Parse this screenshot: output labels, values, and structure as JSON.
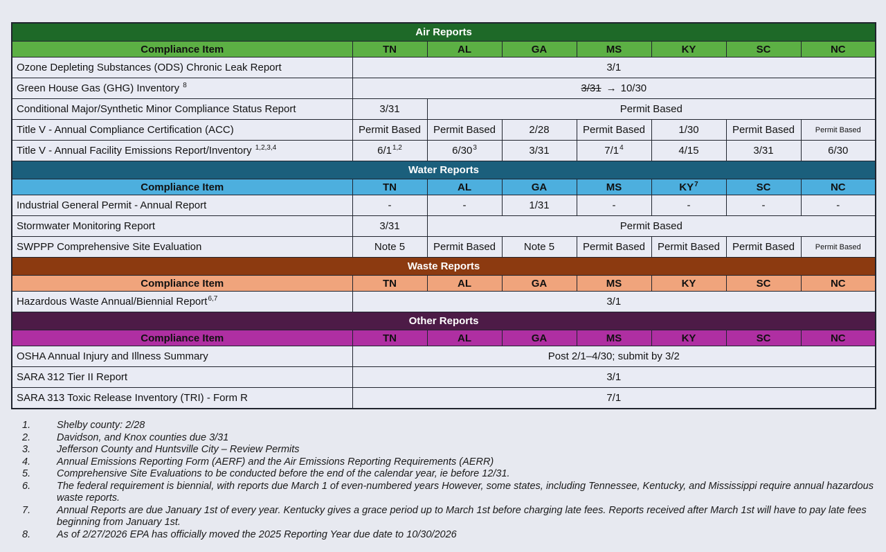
{
  "page": {
    "background": "#e7e9f0"
  },
  "table": {
    "compliance_item_label": "Compliance Item",
    "border_color": "#20242e",
    "cell_background": "#e9ebf4",
    "arrow_glyph": "→",
    "sections": [
      {
        "id": "air",
        "title": "Air Reports",
        "colors": {
          "dark": "#1e6928",
          "light": "#5cb044"
        },
        "columns": [
          {
            "label": "TN"
          },
          {
            "label": "AL"
          },
          {
            "label": "GA"
          },
          {
            "label": "MS"
          },
          {
            "label": "KY"
          },
          {
            "label": "SC"
          },
          {
            "label": "NC"
          }
        ],
        "rows": [
          {
            "item": {
              "text": "Ozone Depleting Substances (ODS) Chronic Leak Report"
            },
            "cells": [
              {
                "text": "3/1",
                "colspan": 7
              }
            ]
          },
          {
            "item": {
              "text": "Green House Gas (GHG) Inventory ",
              "sup": "8"
            },
            "cells": [
              {
                "colspan": 7,
                "rich": {
                  "strike": "3/31",
                  "text": "10/30"
                }
              }
            ]
          },
          {
            "item": {
              "text": "Conditional Major/Synthetic Minor Compliance Status Report"
            },
            "cells": [
              {
                "text": "3/31"
              },
              {
                "text": "Permit Based",
                "colspan": 6
              }
            ]
          },
          {
            "item": {
              "text": "Title V - Annual Compliance Certification (ACC)"
            },
            "cells": [
              {
                "text": "Permit Based"
              },
              {
                "text": "Permit Based"
              },
              {
                "text": "2/28"
              },
              {
                "text": "Permit Based"
              },
              {
                "text": "1/30"
              },
              {
                "text": "Permit Based"
              },
              {
                "text": "Permit Based",
                "small": true
              }
            ]
          },
          {
            "item": {
              "text": "Title V - Annual Facility Emissions Report/Inventory ",
              "sup": "1,2,3,4"
            },
            "cells": [
              {
                "text": "6/1",
                "sup": "1,2"
              },
              {
                "text": "6/30",
                "sup": "3"
              },
              {
                "text": "3/31"
              },
              {
                "text": "7/1",
                "sup": "4"
              },
              {
                "text": "4/15"
              },
              {
                "text": "3/31"
              },
              {
                "text": "6/30"
              }
            ]
          }
        ]
      },
      {
        "id": "water",
        "title": "Water Reports",
        "colors": {
          "dark": "#1b5f7c",
          "light": "#4dafde"
        },
        "columns": [
          {
            "label": "TN"
          },
          {
            "label": "AL"
          },
          {
            "label": "GA"
          },
          {
            "label": "MS"
          },
          {
            "label": "KY",
            "sup": "7"
          },
          {
            "label": "SC"
          },
          {
            "label": "NC"
          }
        ],
        "rows": [
          {
            "item": {
              "text": "Industrial General Permit - Annual Report"
            },
            "cells": [
              {
                "text": "-"
              },
              {
                "text": "-"
              },
              {
                "text": "1/31"
              },
              {
                "text": "-"
              },
              {
                "text": "-"
              },
              {
                "text": "-"
              },
              {
                "text": "-"
              }
            ]
          },
          {
            "item": {
              "text": "Stormwater Monitoring Report"
            },
            "cells": [
              {
                "text": "3/31"
              },
              {
                "text": "Permit Based",
                "colspan": 6
              }
            ]
          },
          {
            "item": {
              "text": "SWPPP Comprehensive Site Evaluation"
            },
            "cells": [
              {
                "text": "Note 5"
              },
              {
                "text": "Permit Based"
              },
              {
                "text": "Note 5"
              },
              {
                "text": "Permit Based"
              },
              {
                "text": "Permit Based"
              },
              {
                "text": "Permit Based"
              },
              {
                "text": "Permit Based",
                "small": true
              }
            ]
          }
        ]
      },
      {
        "id": "waste",
        "title": "Waste Reports",
        "colors": {
          "dark": "#8c3a10",
          "light": "#f0a47c"
        },
        "columns": [
          {
            "label": "TN"
          },
          {
            "label": "AL"
          },
          {
            "label": "GA"
          },
          {
            "label": "MS"
          },
          {
            "label": "KY"
          },
          {
            "label": "SC"
          },
          {
            "label": "NC"
          }
        ],
        "rows": [
          {
            "item": {
              "text": "Hazardous Waste Annual/Biennial Report",
              "sup": "6,7",
              "sup_tight": true
            },
            "cells": [
              {
                "text": "3/1",
                "colspan": 7
              }
            ]
          }
        ]
      },
      {
        "id": "other",
        "title": "Other Reports",
        "colors": {
          "dark": "#4d1b47",
          "light": "#af2fa2"
        },
        "columns": [
          {
            "label": "TN"
          },
          {
            "label": "AL"
          },
          {
            "label": "GA"
          },
          {
            "label": "MS"
          },
          {
            "label": "KY"
          },
          {
            "label": "SC"
          },
          {
            "label": "NC"
          }
        ],
        "rows": [
          {
            "item": {
              "text": "OSHA Annual Injury and Illness Summary"
            },
            "cells": [
              {
                "text": "Post 2/1–4/30; submit by 3/2",
                "colspan": 7
              }
            ]
          },
          {
            "item": {
              "text": "SARA 312 Tier II Report"
            },
            "cells": [
              {
                "text": "3/1",
                "colspan": 7
              }
            ]
          },
          {
            "item": {
              "text": "SARA 313 Toxic Release Inventory (TRI) - Form R"
            },
            "cells": [
              {
                "text": "7/1",
                "colspan": 7
              }
            ]
          }
        ]
      }
    ]
  },
  "footnotes": [
    {
      "num": "1.",
      "text": "Shelby county: 2/28"
    },
    {
      "num": "2.",
      "text": "Davidson, and Knox counties due 3/31"
    },
    {
      "num": "3.",
      "text": "Jefferson County and Huntsville City – Review Permits"
    },
    {
      "num": "4.",
      "text": "Annual Emissions Reporting Form (AERF) and the Air Emissions Reporting Requirements (AERR)"
    },
    {
      "num": "5.",
      "text": "Comprehensive Site Evaluations to be conducted before the end of the calendar year, ie before 12/31."
    },
    {
      "num": "6.",
      "text": "The federal requirement is biennial, with reports due March 1 of even-numbered years However, some states, including Tennessee, Kentucky, and Mississippi require annual hazardous waste reports."
    },
    {
      "num": "7.",
      "text": "Annual Reports are due January 1st of every year. Kentucky gives a grace period up to March 1st before charging late fees. Reports received after March 1st will have to pay late fees beginning from January 1st."
    },
    {
      "num": "8.",
      "text": "As of 2/27/2026 EPA has officially moved the 2025 Reporting Year due date to 10/30/2026"
    }
  ]
}
